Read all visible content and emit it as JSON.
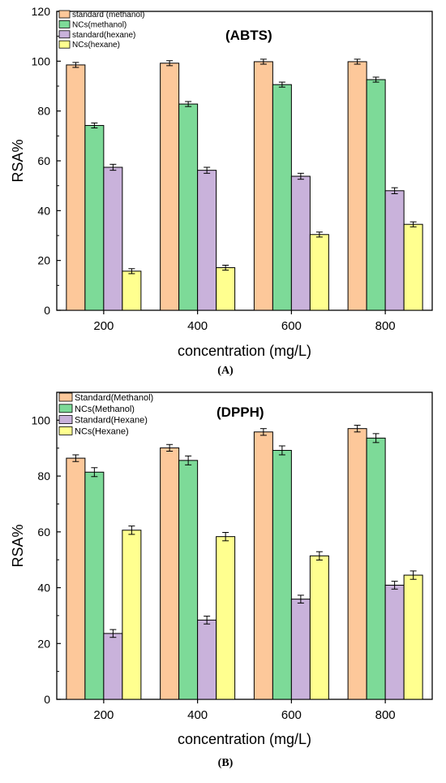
{
  "chart_data": [
    {
      "type": "bar",
      "panel_label": "(A)",
      "annotation": "(ABTS)",
      "xlabel": "concentration (mg/L)",
      "ylabel": "RSA%",
      "categories": [
        "200",
        "400",
        "600",
        "800"
      ],
      "ylim": [
        0,
        120
      ],
      "yticks": [
        0,
        20,
        40,
        60,
        80,
        100,
        120
      ],
      "legend_position": "top-left",
      "series": [
        {
          "name": "standard (methanol)",
          "color": "#FDC89A",
          "values": [
            98.5,
            99.2,
            99.8,
            99.8
          ],
          "errors": [
            1.0,
            1.0,
            1.0,
            1.0
          ]
        },
        {
          "name": "NCs(methanol)",
          "color": "#7DDA98",
          "values": [
            74.2,
            82.8,
            90.6,
            92.6
          ],
          "errors": [
            1.0,
            1.0,
            1.0,
            1.0
          ]
        },
        {
          "name": "standard(hexane)",
          "color": "#C9B2DB",
          "values": [
            57.4,
            56.2,
            53.8,
            48.0
          ],
          "errors": [
            1.2,
            1.2,
            1.2,
            1.2
          ]
        },
        {
          "name": "NCs(hexane)",
          "color": "#FFFF8F",
          "values": [
            15.7,
            17.1,
            30.4,
            34.5
          ],
          "errors": [
            1.0,
            1.0,
            1.0,
            1.0
          ]
        }
      ]
    },
    {
      "type": "bar",
      "panel_label": "(B)",
      "annotation": "(DPPH)",
      "xlabel": "concentration (mg/L)",
      "ylabel": "RSA%",
      "categories": [
        "200",
        "400",
        "600",
        "800"
      ],
      "ylim": [
        0,
        110
      ],
      "yticks": [
        0,
        20,
        40,
        60,
        80,
        100
      ],
      "legend_position": "top-left",
      "series": [
        {
          "name": "Standard(Methanol)",
          "color": "#FDC89A",
          "values": [
            86.4,
            90.1,
            95.8,
            97.0
          ],
          "errors": [
            1.2,
            1.2,
            1.2,
            1.2
          ]
        },
        {
          "name": "NCs(Methanol)",
          "color": "#7DDA98",
          "values": [
            81.4,
            85.6,
            89.2,
            93.6
          ],
          "errors": [
            1.6,
            1.6,
            1.6,
            1.6
          ]
        },
        {
          "name": "Standard(Hexane)",
          "color": "#C9B2DB",
          "values": [
            23.6,
            28.4,
            35.9,
            40.9
          ],
          "errors": [
            1.4,
            1.4,
            1.4,
            1.4
          ]
        },
        {
          "name": "NCs(Hexane)",
          "color": "#FFFF8F",
          "values": [
            60.6,
            58.3,
            51.4,
            44.5
          ],
          "errors": [
            1.5,
            1.5,
            1.5,
            1.5
          ]
        }
      ]
    }
  ]
}
